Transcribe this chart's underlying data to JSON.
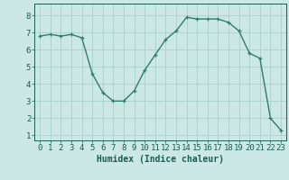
{
  "x": [
    0,
    1,
    2,
    3,
    4,
    5,
    6,
    7,
    8,
    9,
    10,
    11,
    12,
    13,
    14,
    15,
    16,
    17,
    18,
    19,
    20,
    21,
    22,
    23
  ],
  "y": [
    6.8,
    6.9,
    6.8,
    6.9,
    6.7,
    4.6,
    3.5,
    3.0,
    3.0,
    3.6,
    4.8,
    5.7,
    6.6,
    7.1,
    7.9,
    7.8,
    7.8,
    7.8,
    7.6,
    7.1,
    5.8,
    5.5,
    2.0,
    1.3
  ],
  "line_color": "#2e7d6e",
  "marker": "+",
  "markersize": 3.5,
  "linewidth": 1.0,
  "bg_color": "#cce8e4",
  "grid_color": "#aacfca",
  "xlabel": "Humidex (Indice chaleur)",
  "xlabel_fontsize": 7,
  "xlabel_color": "#1a5c54",
  "ylabel_ticks": [
    1,
    2,
    3,
    4,
    5,
    6,
    7,
    8
  ],
  "xlim": [
    -0.5,
    23.5
  ],
  "ylim": [
    0.7,
    8.7
  ],
  "tick_fontsize": 6.5,
  "tick_color": "#1a5c54",
  "xtick_labels": [
    "0",
    "1",
    "2",
    "3",
    "4",
    "5",
    "6",
    "7",
    "8",
    "9",
    "10",
    "11",
    "12",
    "13",
    "14",
    "15",
    "16",
    "17",
    "18",
    "19",
    "20",
    "21",
    "22",
    "23"
  ]
}
